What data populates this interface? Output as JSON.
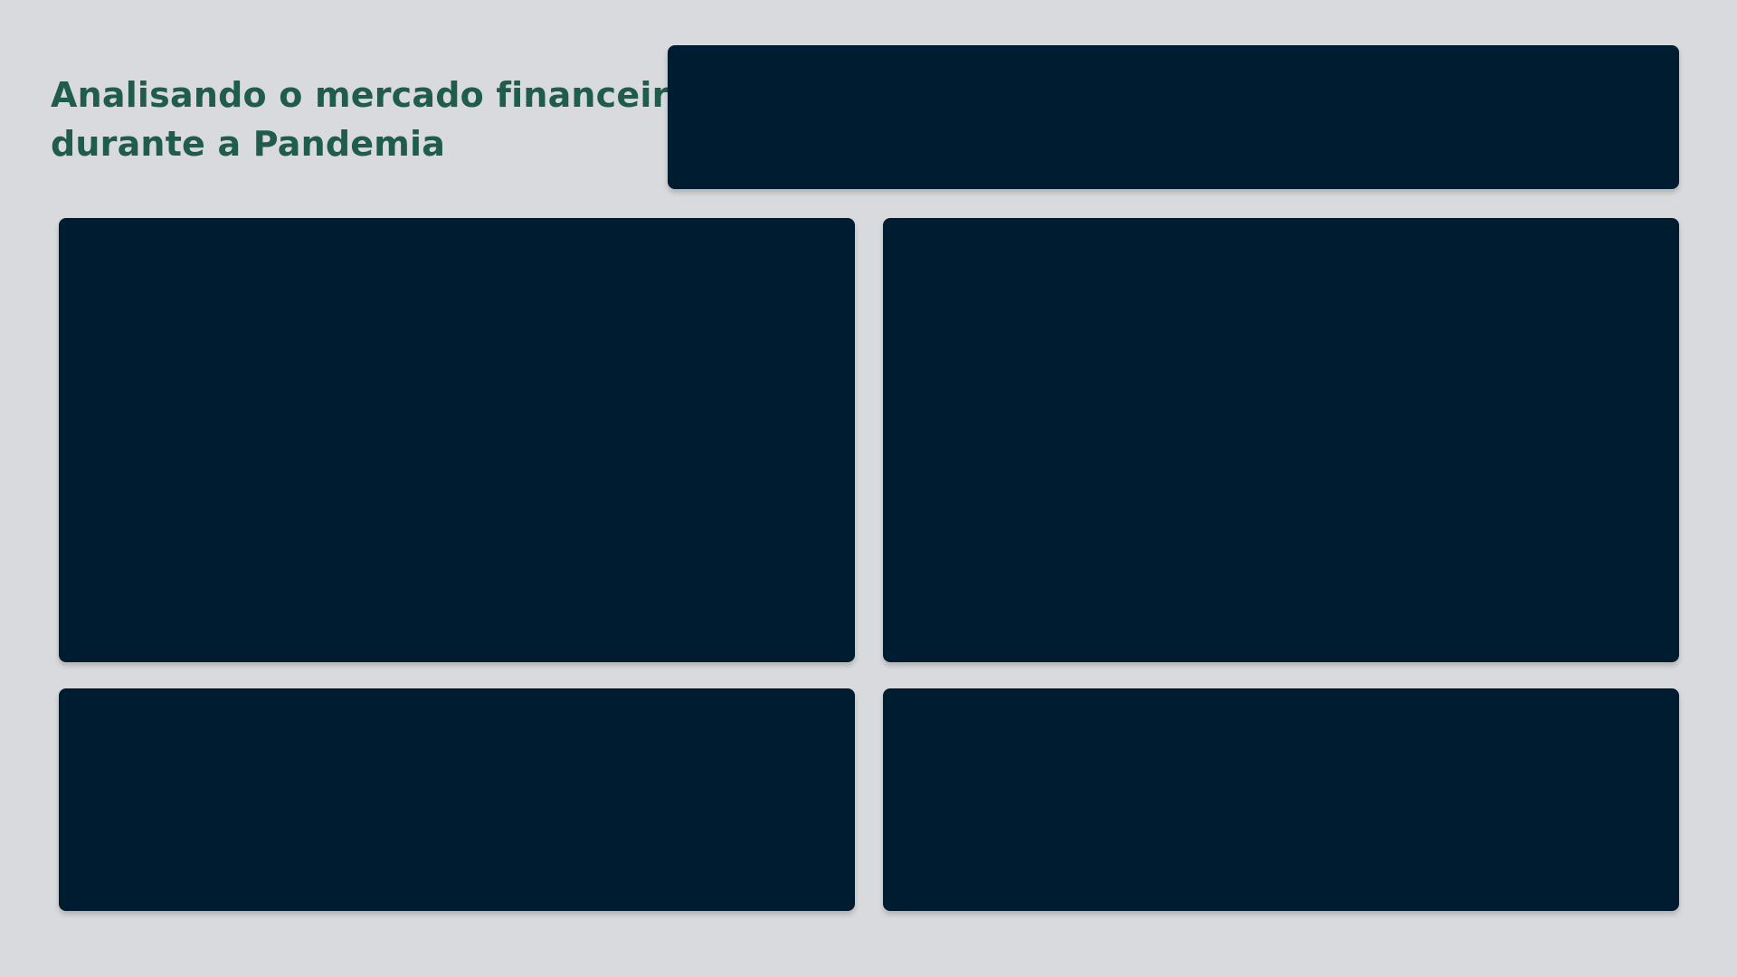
{
  "header": {
    "title_lines": [
      "Analisando o mercado financeiro",
      "durante a Pandemia"
    ]
  },
  "colors": {
    "background": "#d8dadd",
    "title": "#1f5c4c",
    "card": "#001c30"
  }
}
